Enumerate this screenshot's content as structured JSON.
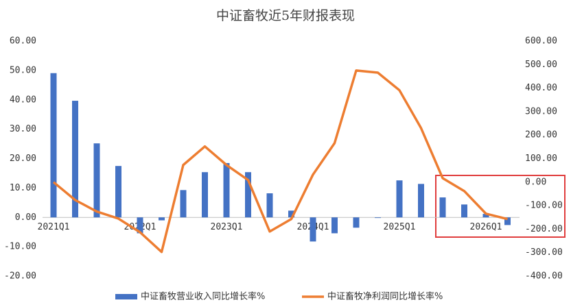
{
  "chart_data": {
    "type": "bar_line",
    "title": "中证畜牧近5年财报表现",
    "categories": [
      "2021Q1",
      null,
      null,
      null,
      "2022Q1",
      null,
      null,
      null,
      "2023Q1",
      null,
      null,
      null,
      "2024Q1",
      null,
      null,
      null,
      "2025Q1",
      null,
      null,
      null,
      "2026Q1",
      null
    ],
    "series": [
      {
        "name": "中证畜牧营业收入同比增长率%",
        "type": "bar",
        "color": "#4472c4",
        "values": [
          49.1,
          39.7,
          25.2,
          17.5,
          -5.4,
          -1.0,
          9.3,
          15.4,
          18.5,
          15.4,
          8.2,
          2.3,
          -8.2,
          -5.4,
          -3.5,
          -0.2,
          12.6,
          11.4,
          6.8,
          4.4,
          1.2,
          -2.6
        ]
      },
      {
        "name": "中证畜牧净利润同比增长率%",
        "type": "line",
        "axis": "y2",
        "color": "#ed7d31",
        "values": [
          0,
          -76,
          -125,
          -155,
          -213,
          -297,
          73,
          152,
          73,
          9,
          -210,
          -157,
          32,
          166,
          475,
          466,
          391,
          230,
          17,
          -38,
          -134,
          -157
        ]
      }
    ],
    "ylim": [
      -20,
      60
    ],
    "yticks": [
      {
        "value": -20,
        "label": "-20.00"
      },
      {
        "value": -10,
        "label": "-10.00"
      },
      {
        "value": 0,
        "label": "0.00"
      },
      {
        "value": 10,
        "label": "10.00"
      },
      {
        "value": 20,
        "label": "20.00"
      },
      {
        "value": 30,
        "label": "30.00"
      },
      {
        "value": 40,
        "label": "40.00"
      },
      {
        "value": 50,
        "label": "50.00"
      },
      {
        "value": 60,
        "label": "60.00"
      }
    ],
    "y2lim": [
      -400,
      600
    ],
    "y2ticks": [
      {
        "value": -400,
        "label": "-400.00"
      },
      {
        "value": -300,
        "label": "-300.00"
      },
      {
        "value": -200,
        "label": "-200.00"
      },
      {
        "value": -100,
        "label": "-100.00"
      },
      {
        "value": 0,
        "label": "0.00"
      },
      {
        "value": 100,
        "label": "100.00"
      },
      {
        "value": 200,
        "label": "200.00"
      },
      {
        "value": 300,
        "label": "300.00"
      },
      {
        "value": 400,
        "label": "400.00"
      },
      {
        "value": 500,
        "label": "500.00"
      },
      {
        "value": 600,
        "label": "600.00"
      }
    ],
    "legend": "bottom"
  }
}
